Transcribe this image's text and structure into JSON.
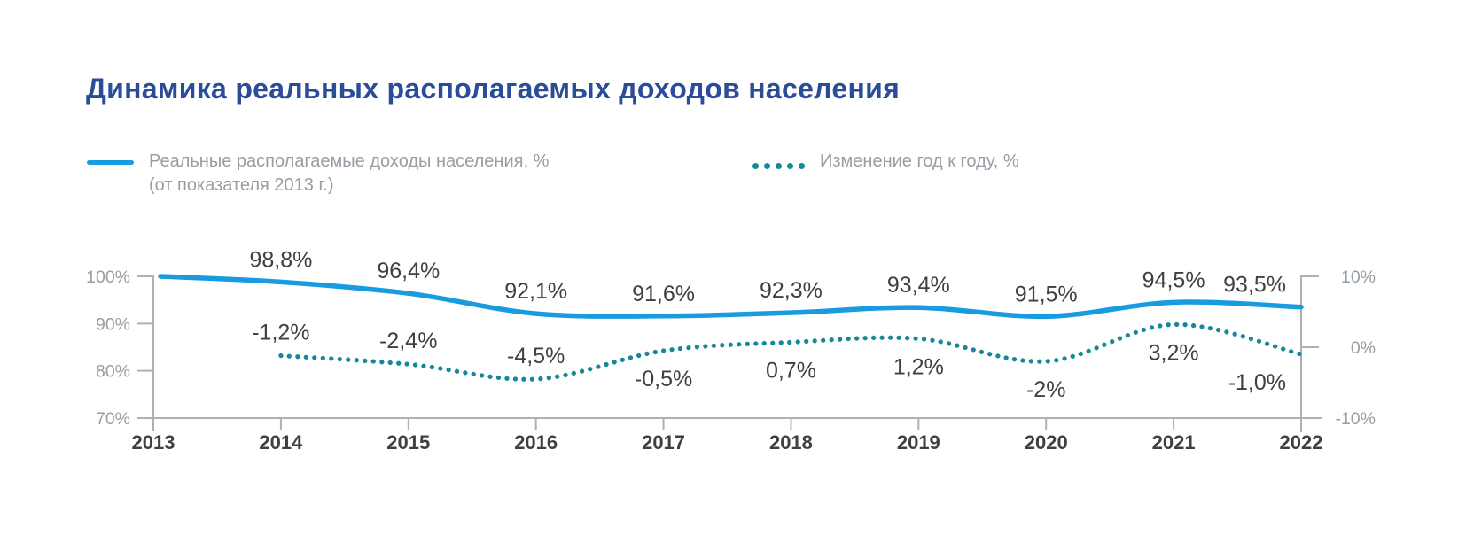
{
  "title": "Динамика реальных располагаемых доходов населения",
  "colors": {
    "blue": "#199be0",
    "teal": "#17889a",
    "title": "#2b4c99",
    "axis": "#aeb0b2",
    "muted": "#979ea5",
    "dark": "#3e4042"
  },
  "legend": {
    "series1": {
      "line1": "Реальные располагаемые доходы населения, %",
      "line2": "(от показателя 2013 г.)"
    },
    "series2": {
      "label": "Изменение год к году, %"
    }
  },
  "chart_data": {
    "type": "line",
    "title": "Динамика реальных располагаемых доходов населения",
    "x_labels": [
      "2013",
      "2014",
      "2015",
      "2016",
      "2017",
      "2018",
      "2019",
      "2020",
      "2021",
      "2022"
    ],
    "left_axis": {
      "tick_labels": [
        "100%",
        "90%",
        "80%",
        "70%"
      ],
      "min": 70,
      "max": 100
    },
    "right_axis": {
      "tick_labels": [
        "10%",
        "0%",
        "-10%"
      ],
      "min": -10,
      "max": 10
    },
    "grid": "off",
    "legend_position": "top",
    "series": [
      {
        "name": "Реальные располагаемые доходы населения, % (от показателя 2013 г.)",
        "axis": "left",
        "style": "solid",
        "color": "#199be0",
        "values": [
          100,
          98.8,
          96.4,
          92.1,
          91.6,
          92.3,
          93.4,
          91.5,
          94.5,
          93.5
        ],
        "point_labels": [
          "",
          "98,8%",
          "96,4%",
          "92,1%",
          "91,6%",
          "92,3%",
          "93,4%",
          "91,5%",
          "94,5%",
          "93,5%"
        ],
        "label_side": [
          "",
          "above",
          "above",
          "above",
          "above",
          "above",
          "above",
          "above",
          "above",
          "above"
        ]
      },
      {
        "name": "Изменение год к году, %",
        "axis": "right",
        "style": "dotted",
        "color": "#17889a",
        "values": [
          null,
          -1.2,
          -2.4,
          -4.5,
          -0.5,
          0.7,
          1.2,
          -2,
          3.2,
          -1
        ],
        "point_labels": [
          "",
          "-1,2%",
          "-2,4%",
          "-4,5%",
          "-0,5%",
          "0,7%",
          "1,2%",
          "-2%",
          "3,2%",
          "-1,0%"
        ],
        "label_side": [
          "",
          "above",
          "above",
          "above",
          "below",
          "below",
          "below",
          "below",
          "below",
          "below"
        ]
      }
    ]
  }
}
